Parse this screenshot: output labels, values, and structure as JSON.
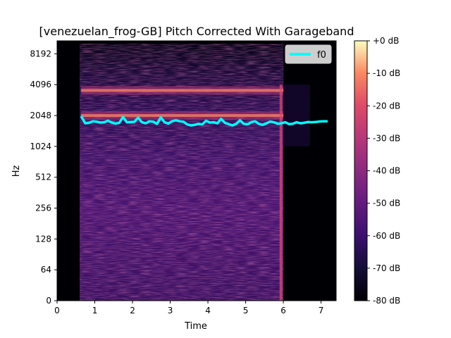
{
  "chart_data": {
    "type": "heatmap",
    "title": "[venezuelan_frog-GB] Pitch Corrected With Garageband",
    "xlabel": "Time",
    "ylabel": "Hz",
    "xlim": [
      0,
      7.4
    ],
    "x_ticks": [
      0,
      1,
      2,
      3,
      4,
      5,
      6,
      7
    ],
    "y_ticks": [
      {
        "value": 0,
        "label": "0"
      },
      {
        "value": 64,
        "label": "64"
      },
      {
        "value": 128,
        "label": "128"
      },
      {
        "value": 256,
        "label": "256"
      },
      {
        "value": 512,
        "label": "512"
      },
      {
        "value": 1024,
        "label": "1024"
      },
      {
        "value": 2048,
        "label": "2048"
      },
      {
        "value": 4096,
        "label": "4096"
      },
      {
        "value": 8192,
        "label": "8192"
      }
    ],
    "y_scale": "symlog",
    "colormap": "magma",
    "colorbar": {
      "range_db": [
        -80,
        0
      ],
      "ticks": [
        "+0 dB",
        "-10 dB",
        "-20 dB",
        "-30 dB",
        "-40 dB",
        "-50 dB",
        "-60 dB",
        "-70 dB",
        "-80 dB"
      ]
    },
    "signal_extent_s": [
      0.6,
      6.0
    ],
    "harmonic_bands_hz": [
      2048,
      3600
    ],
    "legend": {
      "placement": "top-right",
      "entries": [
        "f0"
      ]
    },
    "series": [
      {
        "name": "f0",
        "color": "#00ffff",
        "x": [
          0.65,
          0.75,
          0.85,
          0.95,
          1.05,
          1.15,
          1.25,
          1.35,
          1.45,
          1.55,
          1.65,
          1.75,
          1.85,
          1.95,
          2.05,
          2.15,
          2.25,
          2.35,
          2.45,
          2.55,
          2.65,
          2.75,
          2.85,
          2.95,
          3.05,
          3.15,
          3.25,
          3.35,
          3.45,
          3.55,
          3.65,
          3.75,
          3.85,
          3.95,
          4.05,
          4.15,
          4.25,
          4.35,
          4.45,
          4.55,
          4.65,
          4.75,
          4.85,
          4.95,
          5.05,
          5.15,
          5.25,
          5.35,
          5.45,
          5.55,
          5.65,
          5.75,
          5.85,
          5.95,
          6.05,
          6.15,
          6.25,
          6.35,
          6.45,
          6.55,
          6.65,
          6.75,
          6.85,
          6.95,
          7.05,
          7.15
        ],
        "y": [
          1980,
          1720,
          1740,
          1800,
          1780,
          1750,
          1760,
          1820,
          1750,
          1710,
          1740,
          1980,
          1760,
          1770,
          1780,
          1950,
          1760,
          1720,
          1800,
          1780,
          1700,
          1960,
          1760,
          1710,
          1800,
          1840,
          1800,
          1780,
          1680,
          1640,
          1660,
          1700,
          1680,
          1820,
          1750,
          1760,
          1720,
          1900,
          1740,
          1690,
          1640,
          1700,
          1840,
          1700,
          1680,
          1760,
          1800,
          1700,
          1660,
          1720,
          1790,
          1760,
          1700,
          1720,
          1760,
          1690,
          1700,
          1760,
          1720,
          1740,
          1770,
          1760,
          1770,
          1790,
          1800,
          1800
        ]
      }
    ]
  }
}
